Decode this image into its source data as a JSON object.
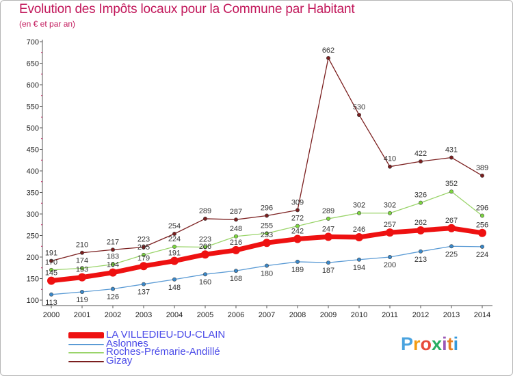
{
  "title": "Evolution des Impôts locaux pour la Commune par Habitant",
  "subtitle": "(en € et par an)",
  "logo": {
    "text": "Proxiti",
    "colors": [
      "#4aa3df",
      "#f39c12",
      "#e74c3c",
      "#27ae60",
      "#9b59b6",
      "#e67e22",
      "#3498db"
    ]
  },
  "chart_data": {
    "type": "line",
    "title": "Evolution des Impôts locaux pour la Commune par Habitant",
    "subtitle": "(en € et par an)",
    "xlabel": "",
    "ylabel": "",
    "ylim": [
      100,
      700
    ],
    "yticks": [
      100,
      150,
      200,
      250,
      300,
      350,
      400,
      450,
      500,
      550,
      600,
      650,
      700
    ],
    "categories": [
      "2000",
      "2001",
      "2002",
      "2003",
      "2004",
      "2005",
      "2006",
      "2007",
      "2008",
      "2009",
      "2010",
      "2011",
      "2012",
      "2013",
      "2014"
    ],
    "grid": false,
    "legend_position": "bottom-left",
    "series": [
      {
        "name": "Gizay",
        "color": "#7b1f1f",
        "width": 1.3,
        "marker": 2.7,
        "label_side": "above",
        "values": [
          191,
          210,
          217,
          223,
          254,
          289,
          287,
          296,
          309,
          662,
          530,
          410,
          422,
          431,
          389
        ]
      },
      {
        "name": "Roches-Prémarie-Andillé",
        "color": "#9ad46a",
        "marker_color": "#7cd63f",
        "width": 1.3,
        "marker": 2.7,
        "label_side": "above",
        "values": [
          170,
          174,
          183,
          205,
          224,
          223,
          248,
          255,
          272,
          289,
          302,
          302,
          326,
          352,
          296
        ]
      },
      {
        "name": "Aslonnes",
        "color": "#5b9bd5",
        "marker_color": "#3a88c9",
        "width": 1.3,
        "marker": 2.7,
        "label_side": "below",
        "values": [
          113,
          119,
          126,
          137,
          148,
          160,
          168,
          180,
          189,
          187,
          194,
          200,
          213,
          225,
          224
        ]
      },
      {
        "name": "LA VILLEDIEU-DU-CLAIN",
        "color": "#ee1111",
        "width": 7,
        "marker": 6,
        "label_side": "above",
        "values": [
          145,
          153,
          164,
          179,
          191,
          206,
          216,
          233,
          242,
          247,
          246,
          257,
          262,
          267,
          256
        ]
      }
    ],
    "legend_order": [
      "LA VILLEDIEU-DU-CLAIN",
      "Aslonnes",
      "Roches-Prémarie-Andillé",
      "Gizay"
    ]
  }
}
